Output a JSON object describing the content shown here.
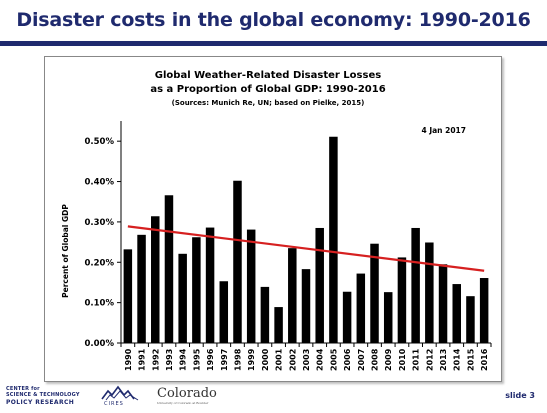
{
  "slide": {
    "title": "Disaster costs in the global economy: 1990-2016",
    "slide_number": "slide 3"
  },
  "logos": {
    "csptr_line1": "CENTER for",
    "csptr_line2": "SCIENCE & TECHNOLOGY",
    "csptr_line3": "POLICY RESEARCH",
    "cires": "CIRES",
    "colorado": "Colorado",
    "colorado_sub": "University of Colorado at Boulder"
  },
  "colors": {
    "title": "#1f2a6e",
    "bars": "#000000",
    "trend": "#d62020"
  },
  "chart_data": {
    "type": "bar",
    "title_lines": [
      "Global Weather-Related Disaster Losses",
      "as a Proportion of Global GDP: 1990-2016"
    ],
    "subtitle": "(Sources: Munich Re, UN; based on Pielke, 2015)",
    "date_note": "4 Jan 2017",
    "ylabel": "Percent of Global GDP",
    "xlabel": "",
    "ylim": [
      0,
      0.55
    ],
    "yticks": [
      "0.00%",
      "0.10%",
      "0.20%",
      "0.30%",
      "0.40%",
      "0.50%"
    ],
    "ytick_values": [
      0,
      0.1,
      0.2,
      0.3,
      0.4,
      0.5
    ],
    "categories": [
      "1990",
      "1991",
      "1992",
      "1993",
      "1994",
      "1995",
      "1996",
      "1997",
      "1998",
      "1999",
      "2000",
      "2001",
      "2002",
      "2003",
      "2004",
      "2005",
      "2006",
      "2007",
      "2008",
      "2009",
      "2010",
      "2011",
      "2012",
      "2013",
      "2014",
      "2015",
      "2016"
    ],
    "values": [
      0.232,
      0.268,
      0.314,
      0.366,
      0.221,
      0.262,
      0.286,
      0.153,
      0.402,
      0.281,
      0.139,
      0.089,
      0.235,
      0.183,
      0.285,
      0.511,
      0.127,
      0.172,
      0.246,
      0.126,
      0.212,
      0.285,
      0.249,
      0.195,
      0.146,
      0.116,
      0.161
    ],
    "trendline": {
      "start": 0.289,
      "end": 0.179
    },
    "grid": false,
    "legend": "none"
  }
}
